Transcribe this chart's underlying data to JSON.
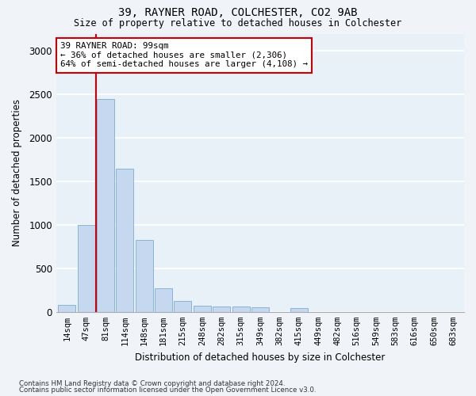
{
  "title1": "39, RAYNER ROAD, COLCHESTER, CO2 9AB",
  "title2": "Size of property relative to detached houses in Colchester",
  "xlabel": "Distribution of detached houses by size in Colchester",
  "ylabel": "Number of detached properties",
  "bar_labels": [
    "14sqm",
    "47sqm",
    "81sqm",
    "114sqm",
    "148sqm",
    "181sqm",
    "215sqm",
    "248sqm",
    "282sqm",
    "315sqm",
    "349sqm",
    "382sqm",
    "415sqm",
    "449sqm",
    "482sqm",
    "516sqm",
    "549sqm",
    "583sqm",
    "616sqm",
    "650sqm",
    "683sqm"
  ],
  "bar_values": [
    80,
    1000,
    2450,
    1650,
    830,
    270,
    130,
    70,
    60,
    60,
    55,
    0,
    40,
    0,
    0,
    0,
    0,
    0,
    0,
    0,
    0
  ],
  "bar_color": "#c5d8f0",
  "bar_edge_color": "#7aadd4",
  "vline_color": "#cc0000",
  "vline_x": 1.5,
  "ylim": [
    0,
    3200
  ],
  "yticks": [
    0,
    500,
    1000,
    1500,
    2000,
    2500,
    3000
  ],
  "annotation_text": "39 RAYNER ROAD: 99sqm\n← 36% of detached houses are smaller (2,306)\n64% of semi-detached houses are larger (4,108) →",
  "annotation_box_facecolor": "#ffffff",
  "annotation_box_edgecolor": "#cc0000",
  "bg_color": "#e8f0f8",
  "fig_bg_color": "#f0f4f8",
  "grid_color": "#ffffff",
  "footnote1": "Contains HM Land Registry data © Crown copyright and database right 2024.",
  "footnote2": "Contains public sector information licensed under the Open Government Licence v3.0."
}
